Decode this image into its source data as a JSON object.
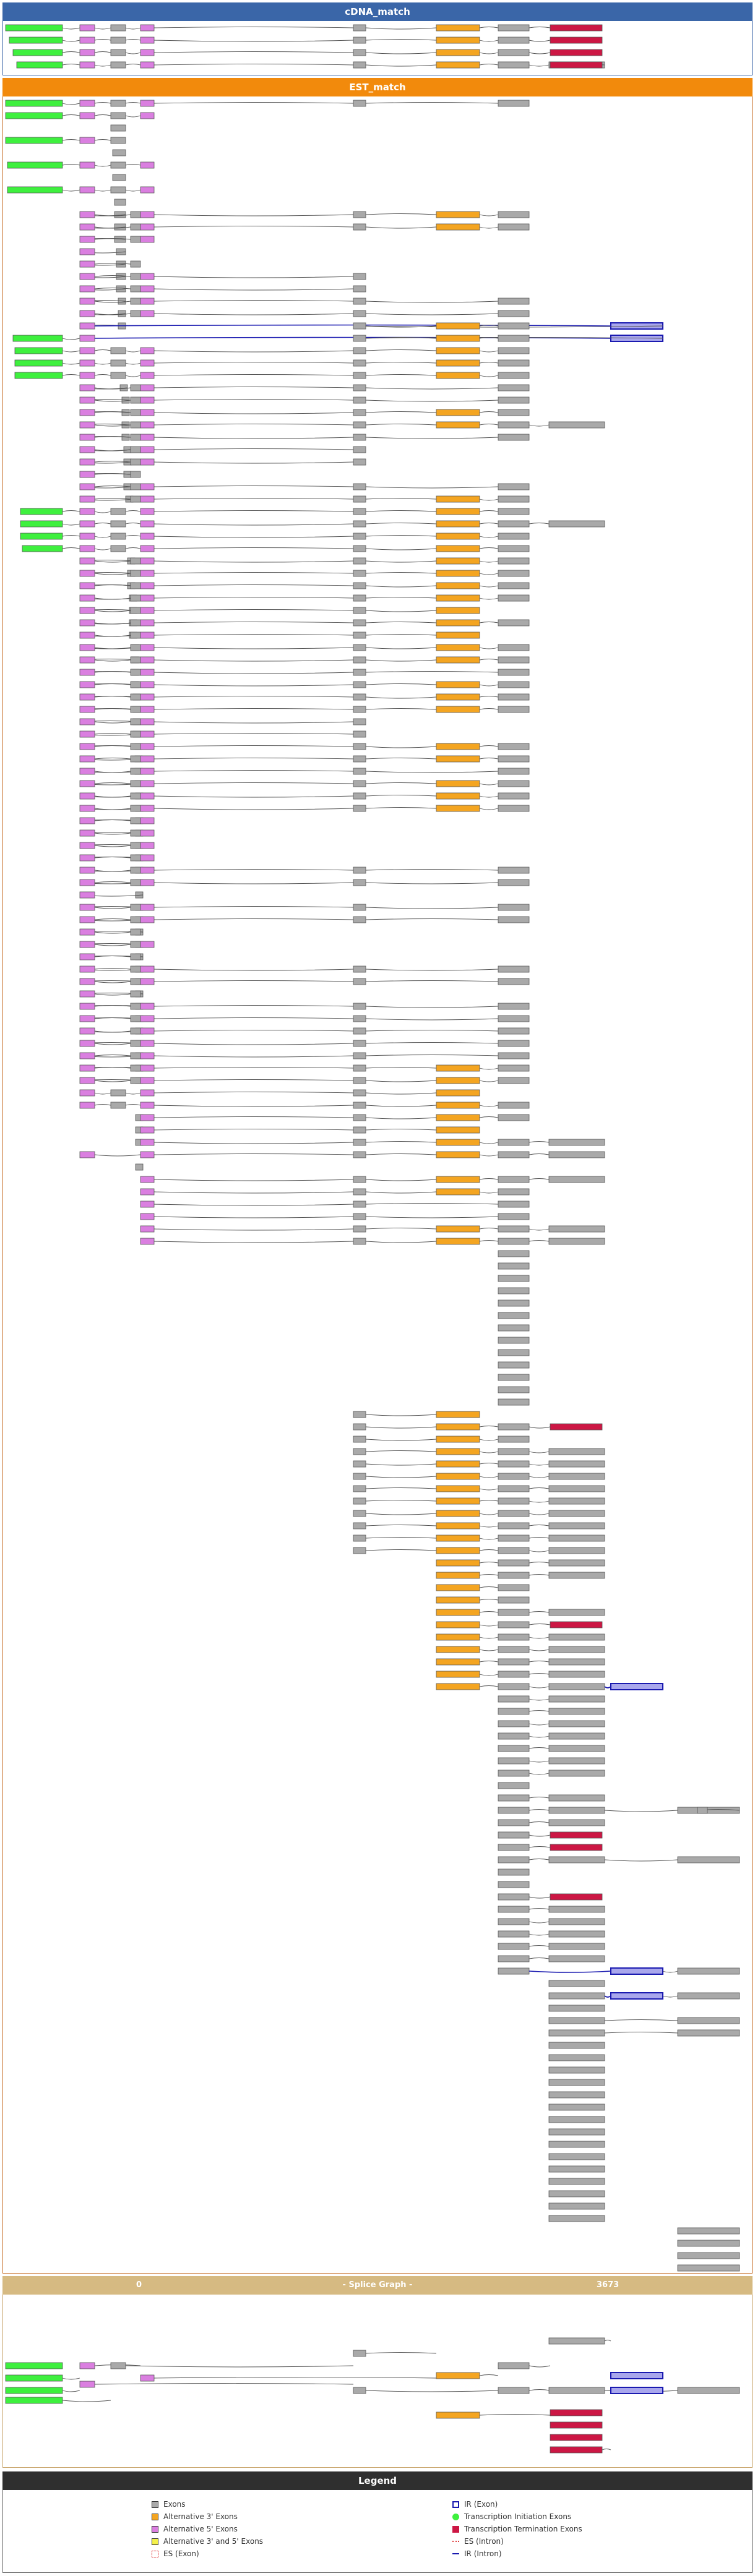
{
  "panels": {
    "cdna": "cDNA_match",
    "est": "EST_match",
    "splice_graph": {
      "start": "0",
      "title": "- Splice Graph -",
      "end": "3673"
    },
    "legend": "Legend"
  },
  "colors": {
    "initiation": "#3ef03e",
    "termination": "#cc1744",
    "exon": "#a9a9a9",
    "alt3": "#f4a521",
    "alt5": "#da7fe0",
    "alt35": "#f3f04a",
    "ir_exon": "#a9a7ec",
    "ir_border": "#1a1ab0",
    "es_exon": "#ffffff",
    "es_border": "#e03a3a"
  },
  "legend": [
    {
      "label": "Exons",
      "swatch": "exon"
    },
    {
      "label": "Alternative 3' Exons",
      "swatch": "alt3"
    },
    {
      "label": "Alternative 5' Exons",
      "swatch": "alt5"
    },
    {
      "label": "Alternative 3' and 5' Exons",
      "swatch": "alt35"
    },
    {
      "label": "ES (Exon)",
      "swatch": "es"
    },
    {
      "label": "IR (Exon)",
      "swatch": "ir"
    },
    {
      "label": "Transcription Initiation Exons",
      "swatch": "initiation"
    },
    {
      "label": "Transcription Termination Exons",
      "swatch": "termination"
    },
    {
      "label": "ES (Intron)",
      "swatch": "es-intron"
    },
    {
      "label": "IR (Intron)",
      "swatch": "ir-intron"
    }
  ],
  "exon_types": {
    "A": "initiation",
    "B": "alt5",
    "C": "exon",
    "D": "alt5",
    "E": "exon",
    "F": "alt3",
    "G": "exon",
    "H": "termination",
    "I": "exon",
    "J": "ir_exon",
    "K": "exon"
  },
  "cdna_tracks": [
    [
      "A",
      "B",
      "C",
      "D",
      "E",
      "F",
      "G",
      "H"
    ],
    [
      "A",
      "B",
      "C",
      "D",
      "E",
      "F",
      "G",
      "H"
    ],
    [
      "A",
      "B",
      "C",
      "D",
      "E",
      "F",
      "G",
      "H"
    ],
    [
      "A",
      "B",
      "C",
      "D",
      "E",
      "F",
      "G",
      "I",
      "H"
    ]
  ],
  "est_tracks": [
    [
      "A",
      "B",
      "C",
      "D",
      "E",
      "G"
    ],
    [
      "A",
      "B",
      "C",
      "D"
    ],
    [
      "C"
    ],
    [
      "A",
      "B",
      "C"
    ],
    [
      "C"
    ],
    [
      "A",
      "B",
      "C",
      "D"
    ],
    [
      "C"
    ],
    [
      "A",
      "B",
      "C",
      "D"
    ],
    [
      "C"
    ],
    [
      "C",
      "B",
      "C",
      "D",
      "E",
      "F",
      "G"
    ],
    [
      "C",
      "B",
      "C",
      "D",
      "E",
      "F",
      "G"
    ],
    [
      "C",
      "B",
      "C",
      "D"
    ],
    [
      "C",
      "B"
    ],
    [
      "C",
      "B",
      "C"
    ],
    [
      "C",
      "B",
      "C",
      "D",
      "E"
    ],
    [
      "C",
      "B",
      "C",
      "D",
      "E"
    ],
    [
      "C",
      "B",
      "C",
      "D",
      "E",
      "G"
    ],
    [
      "C",
      "B",
      "C",
      "D",
      "E",
      "G"
    ],
    [
      "C",
      "B",
      "J",
      "E",
      "F",
      "G"
    ],
    [
      "A",
      "B",
      "J",
      "E",
      "F",
      "G"
    ],
    [
      "A",
      "B",
      "C",
      "D",
      "E",
      "F",
      "G"
    ],
    [
      "A",
      "B",
      "C",
      "D",
      "E",
      "F",
      "G"
    ],
    [
      "A",
      "B",
      "C",
      "D",
      "E",
      "F",
      "G"
    ],
    [
      "C",
      "B",
      "C",
      "D",
      "E",
      "G"
    ],
    [
      "C",
      "B",
      "C",
      "D",
      "E",
      "G"
    ],
    [
      "C",
      "B",
      "C",
      "D",
      "E",
      "F",
      "G"
    ],
    [
      "C",
      "B",
      "C",
      "D",
      "E",
      "F",
      "G",
      "I"
    ],
    [
      "C",
      "B",
      "C",
      "D",
      "E",
      "G"
    ],
    [
      "C",
      "B",
      "C",
      "D",
      "E"
    ],
    [
      "C",
      "B",
      "C",
      "D",
      "E"
    ],
    [
      "C",
      "B",
      "C"
    ],
    [
      "C",
      "B",
      "C",
      "D",
      "E",
      "G"
    ],
    [
      "C",
      "B",
      "C",
      "D",
      "E",
      "F",
      "G"
    ],
    [
      "A",
      "B",
      "C",
      "D",
      "E",
      "F",
      "G"
    ],
    [
      "A",
      "B",
      "C",
      "D",
      "E",
      "F",
      "G",
      "I"
    ],
    [
      "A",
      "B",
      "C",
      "D",
      "E",
      "F",
      "G"
    ],
    [
      "A",
      "B",
      "C",
      "D",
      "E",
      "F",
      "G"
    ],
    [
      "C",
      "B",
      "C",
      "D",
      "E",
      "F",
      "G"
    ],
    [
      "C",
      "B",
      "C",
      "D",
      "E",
      "F",
      "G"
    ],
    [
      "C",
      "B",
      "C",
      "D",
      "E",
      "F",
      "G"
    ],
    [
      "C",
      "B",
      "C",
      "D",
      "E",
      "F",
      "G"
    ],
    [
      "C",
      "B",
      "C",
      "D",
      "E",
      "F"
    ],
    [
      "C",
      "B",
      "C",
      "D",
      "E",
      "F",
      "G"
    ],
    [
      "C",
      "B",
      "C",
      "D",
      "E",
      "F"
    ],
    [
      "C",
      "B",
      "C",
      "D",
      "E",
      "F",
      "G"
    ],
    [
      "C",
      "B",
      "C",
      "D",
      "E",
      "F",
      "G"
    ],
    [
      "C",
      "B",
      "C",
      "D",
      "E",
      "G"
    ],
    [
      "C",
      "B",
      "C",
      "D",
      "E",
      "F",
      "G"
    ],
    [
      "C",
      "B",
      "C",
      "D",
      "E",
      "F",
      "G"
    ],
    [
      "C",
      "B",
      "C",
      "D",
      "E",
      "F",
      "G"
    ],
    [
      "C",
      "B",
      "C",
      "D",
      "E"
    ],
    [
      "C",
      "B",
      "C",
      "D",
      "E"
    ],
    [
      "C",
      "B",
      "C",
      "D",
      "E",
      "F",
      "G"
    ],
    [
      "C",
      "B",
      "C",
      "D",
      "E",
      "F",
      "G"
    ],
    [
      "C",
      "B",
      "C",
      "D",
      "E",
      "G"
    ],
    [
      "C",
      "B",
      "C",
      "D",
      "E",
      "F",
      "G"
    ],
    [
      "C",
      "B",
      "C",
      "D",
      "E",
      "F",
      "G"
    ],
    [
      "C",
      "B",
      "C",
      "D",
      "E",
      "F",
      "G"
    ],
    [
      "C",
      "B",
      "C",
      "D"
    ],
    [
      "C",
      "B",
      "C",
      "D"
    ],
    [
      "C",
      "B",
      "C",
      "D"
    ],
    [
      "C",
      "B",
      "C",
      "D"
    ],
    [
      "C",
      "B",
      "C",
      "D",
      "E",
      "G"
    ],
    [
      "C",
      "B",
      "C",
      "D",
      "E",
      "G"
    ],
    [
      "C",
      "B"
    ],
    [
      "C",
      "B",
      "C",
      "D",
      "E",
      "G"
    ],
    [
      "C",
      "B",
      "C",
      "D",
      "E",
      "G"
    ],
    [
      "C",
      "B",
      "C"
    ],
    [
      "C",
      "B",
      "C",
      "D"
    ],
    [
      "C",
      "B",
      "C"
    ],
    [
      "C",
      "B",
      "C",
      "D",
      "E",
      "G"
    ],
    [
      "C",
      "B",
      "C",
      "D",
      "E",
      "G"
    ],
    [
      "C",
      "B",
      "C"
    ],
    [
      "C",
      "B",
      "C",
      "D",
      "E",
      "G"
    ],
    [
      "C",
      "B",
      "C",
      "D",
      "E",
      "G"
    ],
    [
      "C",
      "B",
      "C",
      "D",
      "E",
      "G"
    ],
    [
      "C",
      "B",
      "C",
      "D",
      "E",
      "G"
    ],
    [
      "C",
      "B",
      "C",
      "D",
      "E",
      "G"
    ],
    [
      "C",
      "B",
      "C",
      "D",
      "E",
      "F",
      "G"
    ],
    [
      "C",
      "B",
      "C",
      "D",
      "E",
      "F",
      "G"
    ],
    [
      "B",
      "C",
      "D",
      "E",
      "F"
    ],
    [
      "B",
      "C",
      "D",
      "E",
      "F",
      "G"
    ],
    [
      "C",
      "D",
      "E",
      "F",
      "G"
    ],
    [
      "C",
      "D",
      "E",
      "F"
    ],
    [
      "C",
      "D",
      "E",
      "F",
      "G",
      "I"
    ],
    [
      "B",
      "D",
      "E",
      "F",
      "G",
      "I"
    ],
    [
      "C"
    ],
    [
      "D",
      "E",
      "F",
      "G",
      "I"
    ],
    [
      "D",
      "E",
      "F",
      "G"
    ],
    [
      "D",
      "E",
      "G"
    ],
    [
      "D",
      "E",
      "G"
    ],
    [
      "D",
      "E",
      "F",
      "G",
      "I"
    ],
    [
      "D",
      "E",
      "F",
      "G",
      "I"
    ],
    [
      "G"
    ],
    [
      "G"
    ],
    [
      "G"
    ],
    [
      "G"
    ],
    [
      "G"
    ],
    [
      "G"
    ],
    [
      "G"
    ],
    [
      "G"
    ],
    [
      "G"
    ],
    [
      "G"
    ],
    [
      "G"
    ],
    [
      "G"
    ],
    [
      "G"
    ],
    [
      "E",
      "F"
    ],
    [
      "E",
      "F",
      "G",
      "H"
    ],
    [
      "E",
      "F",
      "G"
    ],
    [
      "E",
      "F",
      "G",
      "I"
    ],
    [
      "E",
      "F",
      "G",
      "I"
    ],
    [
      "E",
      "F",
      "G",
      "I"
    ],
    [
      "E",
      "F",
      "G",
      "I"
    ],
    [
      "E",
      "F",
      "G",
      "I"
    ],
    [
      "E",
      "F",
      "G",
      "I"
    ],
    [
      "E",
      "F",
      "G",
      "I"
    ],
    [
      "E",
      "F",
      "G",
      "I"
    ],
    [
      "E",
      "F",
      "G",
      "I"
    ],
    [
      "F",
      "G",
      "I"
    ],
    [
      "F",
      "G",
      "I"
    ],
    [
      "F",
      "G"
    ],
    [
      "F",
      "G"
    ],
    [
      "F",
      "G",
      "I"
    ],
    [
      "F",
      "G",
      "H"
    ],
    [
      "F",
      "G",
      "I"
    ],
    [
      "F",
      "G",
      "I"
    ],
    [
      "F",
      "G",
      "I"
    ],
    [
      "F",
      "G",
      "I"
    ],
    [
      "F",
      "G",
      "I",
      "J"
    ],
    [
      "G",
      "I"
    ],
    [
      "G",
      "I"
    ],
    [
      "G",
      "I"
    ],
    [
      "G",
      "I"
    ],
    [
      "G",
      "I"
    ],
    [
      "G",
      "I"
    ],
    [
      "G",
      "I"
    ],
    [
      "G"
    ],
    [
      "G",
      "I"
    ],
    [
      "G",
      "I",
      "K",
      "K"
    ],
    [
      "G",
      "I"
    ],
    [
      "G",
      "H"
    ],
    [
      "G",
      "H"
    ],
    [
      "G",
      "I",
      "K"
    ],
    [
      "G"
    ],
    [
      "G"
    ],
    [
      "G",
      "H"
    ],
    [
      "G",
      "I"
    ],
    [
      "G",
      "I"
    ],
    [
      "G",
      "I"
    ],
    [
      "G",
      "I"
    ],
    [
      "G",
      "I"
    ],
    [
      "G",
      "J",
      "K"
    ],
    [
      "I"
    ],
    [
      "I",
      "J",
      "K"
    ],
    [
      "I"
    ],
    [
      "I",
      "K"
    ],
    [
      "I",
      "K"
    ],
    [
      "I"
    ],
    [
      "I"
    ],
    [
      "I"
    ],
    [
      "I"
    ],
    [
      "I"
    ],
    [
      "I"
    ],
    [
      "I"
    ],
    [
      "I"
    ],
    [
      "I"
    ],
    [
      "I"
    ],
    [
      "I"
    ],
    [
      "I"
    ],
    [
      "I"
    ],
    [
      "I"
    ],
    [
      "I"
    ],
    [
      "K"
    ],
    [
      "K"
    ],
    [
      "K"
    ],
    [
      "K"
    ]
  ],
  "splice_graph_nodes": [
    "A",
    "A",
    "A",
    "A",
    "B",
    "B",
    "C",
    "D",
    "E",
    "E",
    "F",
    "F",
    "G",
    "G",
    "H",
    "H",
    "H",
    "H",
    "I",
    "I",
    "J",
    "J",
    "K"
  ]
}
